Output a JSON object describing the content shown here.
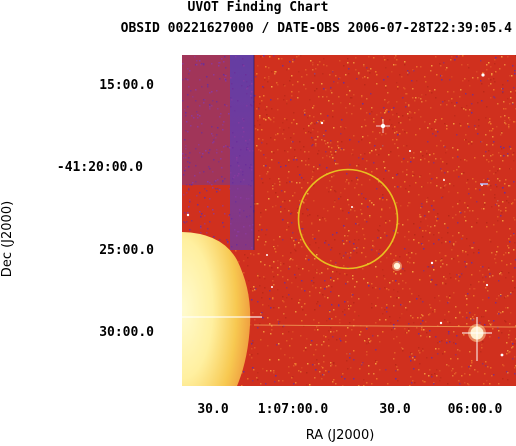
{
  "header": {
    "title": "UVOT Finding Chart",
    "subtitle": "OBSID 00221627000 / DATE-OBS 2006-07-28T22:39:05.4"
  },
  "axes": {
    "xlabel": "RA (J2000)",
    "ylabel": "Dec (J2000)",
    "dec_ticks": [
      "15:00.0",
      "-41:20:00.0",
      "25:00.0",
      "30:00.0"
    ],
    "ra_ticks": [
      "30.0",
      "1:07:00.0",
      "30.0",
      "06:00.0"
    ]
  },
  "image": {
    "colors": {
      "background": "#d0301e",
      "noise_hot": "#f07a2a",
      "noise_cool": "#6a2e9a",
      "bright_source": "#fff4a8",
      "circle": "#e8c020"
    }
  }
}
